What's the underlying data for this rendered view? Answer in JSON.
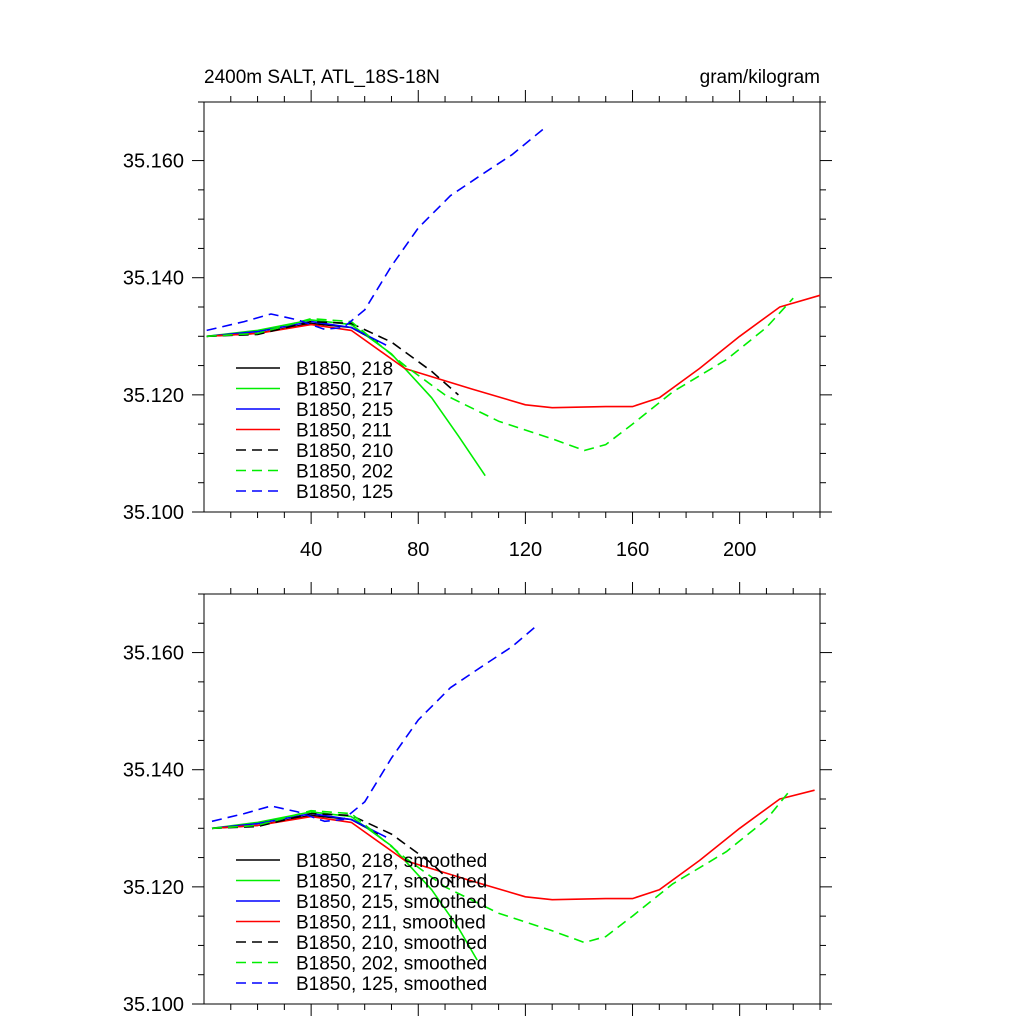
{
  "header": {
    "left_title": "2400m SALT, ATL_18S-18N",
    "right_title": "gram/kilogram"
  },
  "chart_data": [
    {
      "type": "line",
      "title": "2400m SALT, ATL_18S-18N",
      "units": "gram/kilogram",
      "xlim": [
        0,
        230
      ],
      "ylim": [
        35.1,
        35.17
      ],
      "x_ticks": [
        40,
        80,
        120,
        160,
        200
      ],
      "y_ticks": [
        "35.100",
        "35.120",
        "35.140",
        "35.160"
      ],
      "legend_position": "lower-left",
      "series": [
        {
          "name": "B1850, 218",
          "color": "#000000",
          "dash": "solid",
          "points": [
            [
              1,
              35.13
            ],
            [
              20,
              35.1305
            ],
            [
              40,
              35.1322
            ],
            [
              55,
              35.1315
            ],
            [
              65,
              35.129
            ]
          ]
        },
        {
          "name": "B1850, 217",
          "color": "#00ee00",
          "dash": "solid",
          "points": [
            [
              1,
              35.13
            ],
            [
              20,
              35.131
            ],
            [
              40,
              35.1328
            ],
            [
              55,
              35.132
            ],
            [
              70,
              35.127
            ],
            [
              85,
              35.1195
            ],
            [
              95,
              35.113
            ],
            [
              105,
              35.1062
            ]
          ]
        },
        {
          "name": "B1850, 215",
          "color": "#0000ff",
          "dash": "solid",
          "points": [
            [
              1,
              35.13
            ],
            [
              20,
              35.1308
            ],
            [
              40,
              35.1325
            ],
            [
              55,
              35.1315
            ],
            [
              68,
              35.1285
            ]
          ]
        },
        {
          "name": "B1850, 211",
          "color": "#ff0000",
          "dash": "solid",
          "points": [
            [
              1,
              35.13
            ],
            [
              20,
              35.1305
            ],
            [
              40,
              35.132
            ],
            [
              55,
              35.131
            ],
            [
              75,
              35.1245
            ],
            [
              100,
              35.121
            ],
            [
              120,
              35.1183
            ],
            [
              130,
              35.1178
            ],
            [
              150,
              35.118
            ],
            [
              160,
              35.118
            ],
            [
              170,
              35.1195
            ],
            [
              185,
              35.1245
            ],
            [
              200,
              35.13
            ],
            [
              215,
              35.135
            ],
            [
              230,
              35.137
            ]
          ]
        },
        {
          "name": "B1850, 210",
          "color": "#000000",
          "dash": "dashed",
          "points": [
            [
              1,
              35.13
            ],
            [
              20,
              35.1303
            ],
            [
              40,
              35.1325
            ],
            [
              55,
              35.1322
            ],
            [
              70,
              35.129
            ],
            [
              85,
              35.124
            ],
            [
              95,
              35.12
            ]
          ]
        },
        {
          "name": "B1850, 202",
          "color": "#00ee00",
          "dash": "dashed",
          "points": [
            [
              1,
              35.13
            ],
            [
              20,
              35.1305
            ],
            [
              40,
              35.133
            ],
            [
              55,
              35.1325
            ],
            [
              75,
              35.125
            ],
            [
              90,
              35.12
            ],
            [
              110,
              35.1155
            ],
            [
              130,
              35.1125
            ],
            [
              142,
              35.1105
            ],
            [
              150,
              35.1115
            ],
            [
              160,
              35.115
            ],
            [
              175,
              35.1205
            ],
            [
              195,
              35.126
            ],
            [
              210,
              35.1315
            ],
            [
              220,
              35.1365
            ]
          ]
        },
        {
          "name": "B1850, 125",
          "color": "#0000ff",
          "dash": "dashed",
          "points": [
            [
              1,
              35.131
            ],
            [
              15,
              35.1325
            ],
            [
              25,
              35.1338
            ],
            [
              35,
              35.1328
            ],
            [
              45,
              35.1312
            ],
            [
              52,
              35.1315
            ],
            [
              60,
              35.1345
            ],
            [
              70,
              35.142
            ],
            [
              80,
              35.1485
            ],
            [
              92,
              35.154
            ],
            [
              105,
              35.158
            ],
            [
              115,
              35.161
            ],
            [
              127,
              35.1655
            ]
          ]
        }
      ]
    },
    {
      "type": "line",
      "xlim": [
        0,
        230
      ],
      "ylim": [
        35.1,
        35.17
      ],
      "y_ticks": [
        "35.100",
        "35.120",
        "35.140",
        "35.160"
      ],
      "legend_position": "lower-left",
      "series": [
        {
          "name": "B1850, 218, smoothed",
          "color": "#000000",
          "dash": "solid",
          "points": [
            [
              3,
              35.13
            ],
            [
              20,
              35.1305
            ],
            [
              40,
              35.1322
            ],
            [
              55,
              35.1315
            ],
            [
              65,
              35.129
            ]
          ]
        },
        {
          "name": "B1850, 217, smoothed",
          "color": "#00ee00",
          "dash": "solid",
          "points": [
            [
              3,
              35.13
            ],
            [
              20,
              35.131
            ],
            [
              40,
              35.1328
            ],
            [
              55,
              35.132
            ],
            [
              70,
              35.127
            ],
            [
              85,
              35.1195
            ],
            [
              95,
              35.113
            ],
            [
              102,
              35.1075
            ]
          ]
        },
        {
          "name": "B1850, 215, smoothed",
          "color": "#0000ff",
          "dash": "solid",
          "points": [
            [
              3,
              35.13
            ],
            [
              20,
              35.1308
            ],
            [
              40,
              35.1325
            ],
            [
              55,
              35.1315
            ],
            [
              68,
              35.1285
            ]
          ]
        },
        {
          "name": "B1850, 211, smoothed",
          "color": "#ff0000",
          "dash": "solid",
          "points": [
            [
              3,
              35.13
            ],
            [
              20,
              35.1305
            ],
            [
              40,
              35.132
            ],
            [
              55,
              35.131
            ],
            [
              75,
              35.1245
            ],
            [
              100,
              35.121
            ],
            [
              120,
              35.1183
            ],
            [
              130,
              35.1178
            ],
            [
              150,
              35.118
            ],
            [
              160,
              35.118
            ],
            [
              170,
              35.1195
            ],
            [
              185,
              35.1245
            ],
            [
              200,
              35.13
            ],
            [
              215,
              35.135
            ],
            [
              228,
              35.1365
            ]
          ]
        },
        {
          "name": "B1850, 210, smoothed",
          "color": "#000000",
          "dash": "dashed",
          "points": [
            [
              3,
              35.13
            ],
            [
              20,
              35.1303
            ],
            [
              40,
              35.1325
            ],
            [
              55,
              35.1322
            ],
            [
              70,
              35.129
            ],
            [
              85,
              35.124
            ],
            [
              93,
              35.1205
            ]
          ]
        },
        {
          "name": "B1850, 202, smoothed",
          "color": "#00ee00",
          "dash": "dashed",
          "points": [
            [
              3,
              35.13
            ],
            [
              20,
              35.1305
            ],
            [
              40,
              35.133
            ],
            [
              55,
              35.1325
            ],
            [
              75,
              35.125
            ],
            [
              90,
              35.12
            ],
            [
              110,
              35.1155
            ],
            [
              130,
              35.1125
            ],
            [
              142,
              35.1105
            ],
            [
              150,
              35.1115
            ],
            [
              160,
              35.115
            ],
            [
              175,
              35.1205
            ],
            [
              195,
              35.126
            ],
            [
              210,
              35.1315
            ],
            [
              218,
              35.136
            ]
          ]
        },
        {
          "name": "B1850, 125, smoothed",
          "color": "#0000ff",
          "dash": "dashed",
          "points": [
            [
              3,
              35.1312
            ],
            [
              15,
              35.1325
            ],
            [
              25,
              35.1338
            ],
            [
              35,
              35.1328
            ],
            [
              45,
              35.1312
            ],
            [
              52,
              35.1315
            ],
            [
              60,
              35.1345
            ],
            [
              70,
              35.142
            ],
            [
              80,
              35.1485
            ],
            [
              92,
              35.154
            ],
            [
              105,
              35.158
            ],
            [
              115,
              35.161
            ],
            [
              124,
              35.1645
            ]
          ]
        }
      ]
    }
  ]
}
